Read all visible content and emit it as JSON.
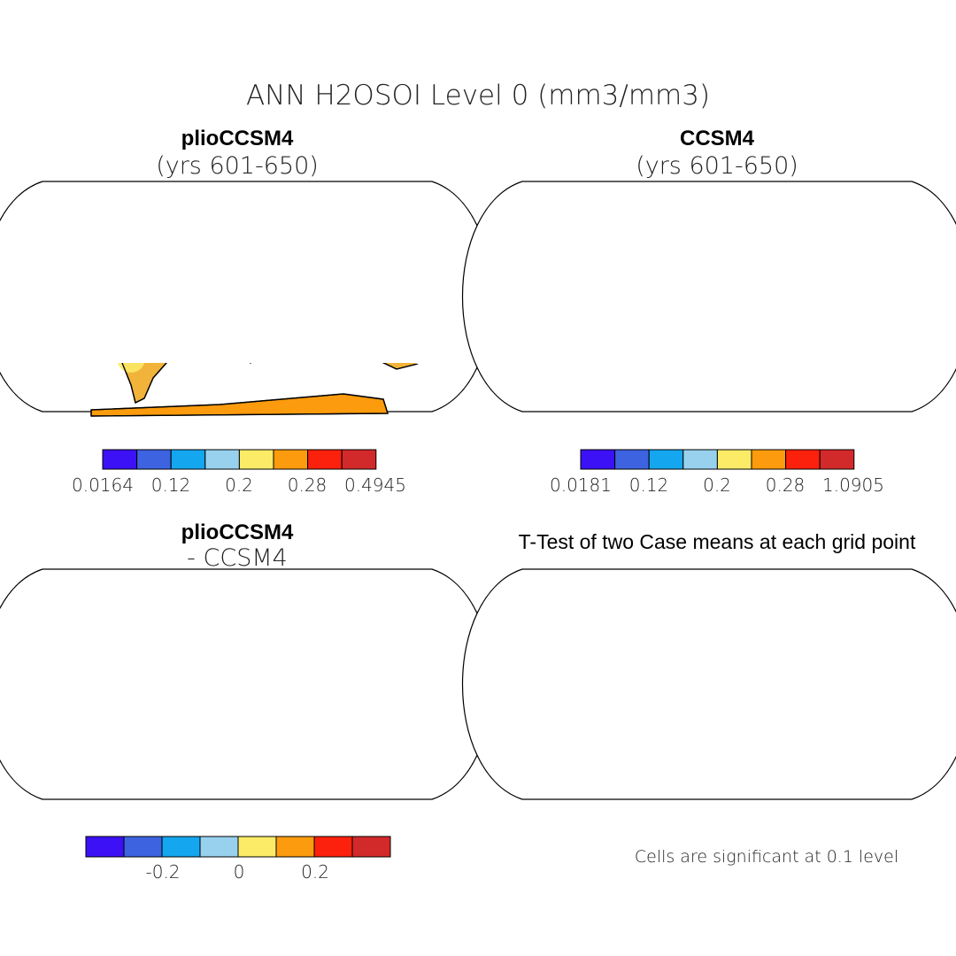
{
  "figure": {
    "title": "ANN H2OSOI Level 0 (mm3/mm3)"
  },
  "palette": [
    "#3d11f5",
    "#3d63e0",
    "#14a6ee",
    "#98d1ee",
    "#fbeb67",
    "#fb9b0d",
    "#fb210d",
    "#d22a2a"
  ],
  "panels": [
    {
      "id": "plio",
      "title": "plioCCSM4",
      "subtitle": "(yrs 601-650)",
      "fill": "#f1b33a",
      "patches": [
        "#fb210d",
        "#98d1ee",
        "#fbeb67",
        "#3d63e0",
        "#3d11f5",
        "#d22a2a"
      ],
      "antarctica": "#fb9b0d",
      "colorbar_labels": [
        "0.0164",
        "0.12",
        "0.2",
        "0.28",
        "0.4945"
      ]
    },
    {
      "id": "ccsm4",
      "title": "CCSM4",
      "subtitle": "(yrs 601-650)",
      "fill": "#f1b33a",
      "patches": [
        "#fb210d",
        "#98d1ee",
        "#fbeb67",
        "#3d63e0",
        "#3d11f5",
        "#d22a2a"
      ],
      "antarctica": "#d22a2a",
      "colorbar_labels": [
        "0.0181",
        "0.12",
        "0.2",
        "0.28",
        "1.0905"
      ]
    },
    {
      "id": "diff",
      "title": "plioCCSM4",
      "subtitle": "- CCSM4",
      "fill": "#fbeb67",
      "patches": [
        "#98d1ee",
        "#98d1ee",
        "#fbeb67",
        "#98d1ee",
        "#fbeb67",
        "#98d1ee"
      ],
      "antarctica": "#3d11f5",
      "colorbar_labels": [
        "-0.2",
        "0",
        "0.2"
      ]
    },
    {
      "id": "ttest",
      "title": "T-Test of two Case means at each grid point",
      "fill": "#fb0a0a",
      "patches": [
        "#ffffff"
      ],
      "antarctica": "#ffffff",
      "note": "Cells are significant at 0.1 level"
    }
  ]
}
